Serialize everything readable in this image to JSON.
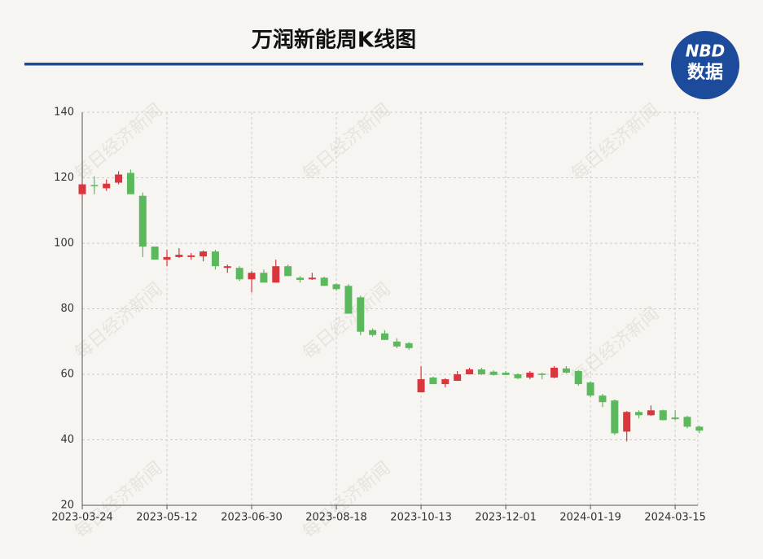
{
  "chart_data": {
    "type": "candlestick",
    "title": "万润新能周K线图",
    "logo": {
      "top": "NBD",
      "bottom": "数据"
    },
    "watermark": "每日经济新闻",
    "categories": [
      "2023-03-24",
      null,
      null,
      null,
      null,
      null,
      null,
      "2023-05-12",
      null,
      null,
      null,
      null,
      null,
      null,
      "2023-06-30",
      null,
      null,
      null,
      null,
      null,
      null,
      "2023-08-18",
      null,
      null,
      null,
      null,
      null,
      null,
      "2023-10-13",
      null,
      null,
      null,
      null,
      null,
      null,
      "2023-12-01",
      null,
      null,
      null,
      null,
      null,
      null,
      "2024-01-19",
      null,
      null,
      null,
      null,
      null,
      null,
      "2024-03-15",
      null,
      null
    ],
    "open": [
      115,
      117.8,
      116.8,
      118.5,
      121.5,
      114.5,
      99,
      95,
      95.8,
      95.8,
      96,
      97.5,
      92.5,
      92.5,
      89,
      91,
      88,
      93,
      89.5,
      89,
      89.5,
      87.5,
      87,
      83.5,
      73.5,
      72.5,
      70,
      69.5,
      54.5,
      59,
      57,
      58,
      60,
      61.5,
      60.8,
      60.5,
      60,
      59,
      60.2,
      59,
      61.8,
      61,
      57.5,
      53.5,
      52,
      42.5,
      48.5,
      47.5,
      49,
      46.8,
      47,
      44
    ],
    "high": [
      118.5,
      120.5,
      119.5,
      122,
      122.5,
      115.5,
      99,
      98,
      98.5,
      97,
      97.8,
      98,
      93.5,
      93,
      91.5,
      92,
      95,
      93.5,
      90,
      91,
      89.8,
      87.8,
      87.5,
      84,
      74,
      73.5,
      71,
      69.8,
      62.5,
      59.3,
      58.8,
      61,
      62,
      62,
      61.2,
      61,
      60.3,
      61,
      60.5,
      62.5,
      62.5,
      61.3,
      57.8,
      54,
      52.3,
      48.8,
      49,
      50.5,
      49.2,
      49,
      47.3,
      44.3
    ],
    "low": [
      114,
      115,
      116,
      118,
      115,
      95.8,
      95,
      93,
      95.5,
      95,
      94.5,
      92,
      91,
      88.5,
      85,
      88,
      88,
      90,
      88,
      88.8,
      87,
      85.5,
      78.5,
      72,
      71.5,
      70.5,
      68,
      67.5,
      54.5,
      57,
      56,
      58,
      60,
      59.8,
      59.6,
      59.8,
      58.5,
      58.5,
      58.5,
      58.8,
      60.3,
      56.5,
      53,
      50,
      41.5,
      39.5,
      46.5,
      47.3,
      46,
      46,
      43.5,
      42
    ],
    "close": [
      118,
      117.5,
      118.2,
      121,
      115,
      99,
      95,
      95.8,
      96.5,
      96.3,
      97.5,
      93,
      93,
      89,
      91,
      88,
      93,
      90,
      88.8,
      89.5,
      87,
      86,
      78.5,
      73,
      72,
      70.5,
      68.5,
      68,
      58.5,
      57,
      58.5,
      60,
      61.5,
      60,
      59.8,
      59.8,
      58.8,
      60.5,
      59.8,
      62,
      60.5,
      57,
      53.5,
      51.5,
      42,
      48.5,
      47.5,
      49,
      46,
      46.3,
      44,
      42.8
    ],
    "up_color": "#d9363e",
    "down_color": "#5cb85c",
    "ylim": [
      20,
      140
    ],
    "yticks": [
      20,
      40,
      60,
      80,
      100,
      120,
      140
    ],
    "grid": true
  }
}
